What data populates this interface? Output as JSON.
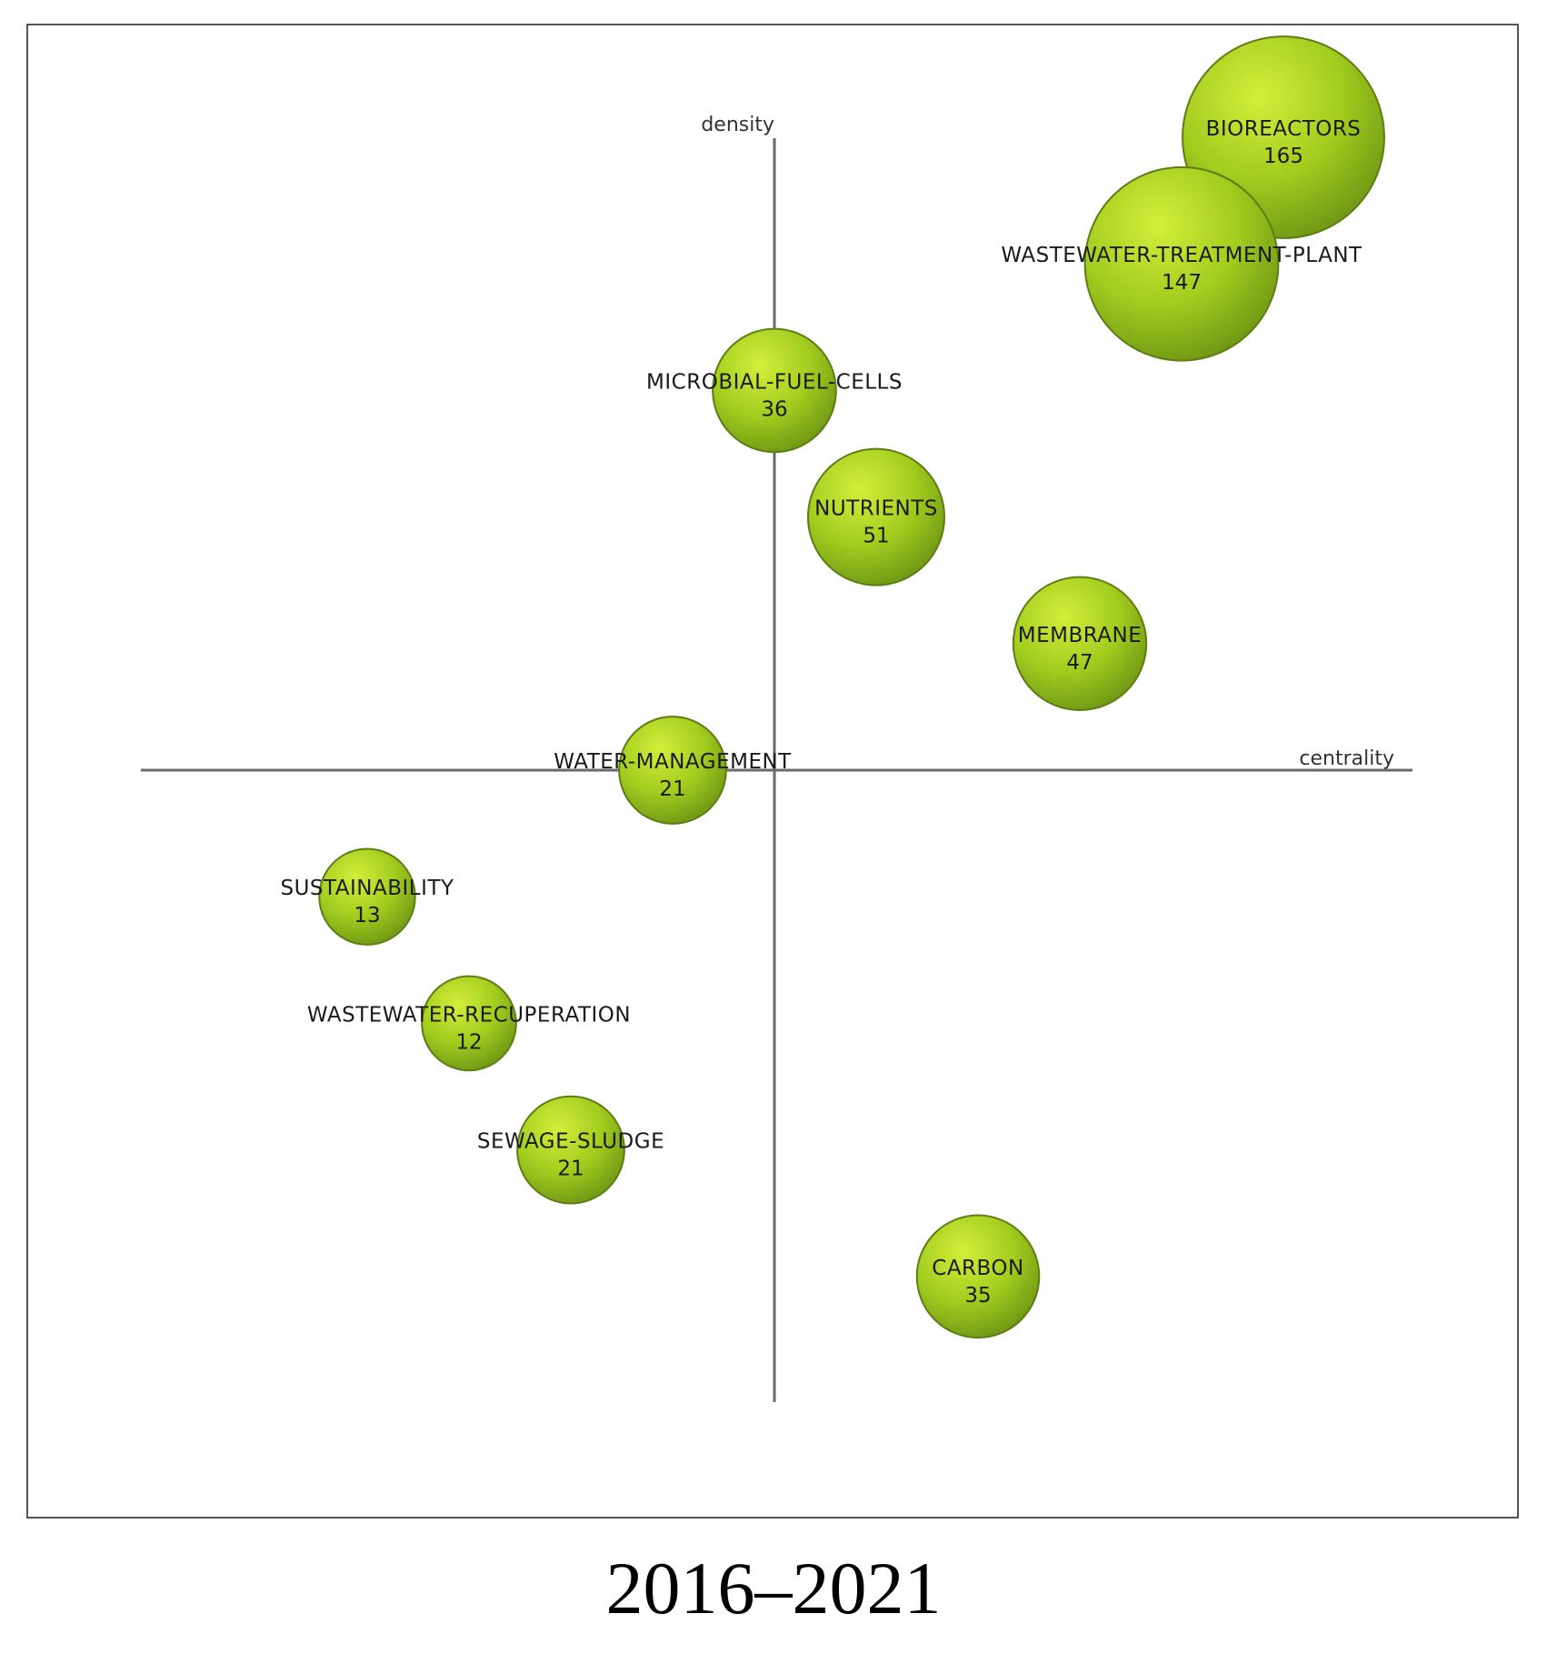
{
  "chart_data": {
    "type": "scatter",
    "subtype": "strategic-diagram-bubble",
    "xlabel": "centrality",
    "ylabel": "density",
    "xlim": [
      -1,
      1
    ],
    "ylim": [
      -1,
      1
    ],
    "grid": false,
    "legend": "none",
    "points": [
      {
        "label": "BIOREACTORS",
        "count": "165",
        "x": 1.0,
        "y": 1.0,
        "size": 165
      },
      {
        "label": "WASTEWATER-TREATMENT-PLANT",
        "count": "147",
        "x": 0.8,
        "y": 0.8,
        "size": 147
      },
      {
        "label": "MICROBIAL-FUEL-CELLS",
        "count": "36",
        "x": 0.0,
        "y": 0.6,
        "size": 36
      },
      {
        "label": "NUTRIENTS",
        "count": "51",
        "x": 0.2,
        "y": 0.4,
        "size": 51
      },
      {
        "label": "MEMBRANE",
        "count": "47",
        "x": 0.6,
        "y": 0.2,
        "size": 47
      },
      {
        "label": "WATER-MANAGEMENT",
        "count": "21",
        "x": -0.2,
        "y": 0.0,
        "size": 21
      },
      {
        "label": "SUSTAINABILITY",
        "count": "13",
        "x": -0.8,
        "y": -0.2,
        "size": 13
      },
      {
        "label": "WASTEWATER-RECUPERATION",
        "count": "12",
        "x": -0.6,
        "y": -0.4,
        "size": 12
      },
      {
        "label": "SEWAGE-SLUDGE",
        "count": "21",
        "x": -0.4,
        "y": -0.6,
        "size": 21
      },
      {
        "label": "CARBON",
        "count": "35",
        "x": 0.4,
        "y": -0.8,
        "size": 35
      }
    ],
    "colors": {
      "bubble_light": "#d4ee3a",
      "bubble_mid": "#a2cc1e",
      "bubble_dark": "#6d9614",
      "axis": "#6a6a6a"
    }
  },
  "caption": "2016–2021"
}
